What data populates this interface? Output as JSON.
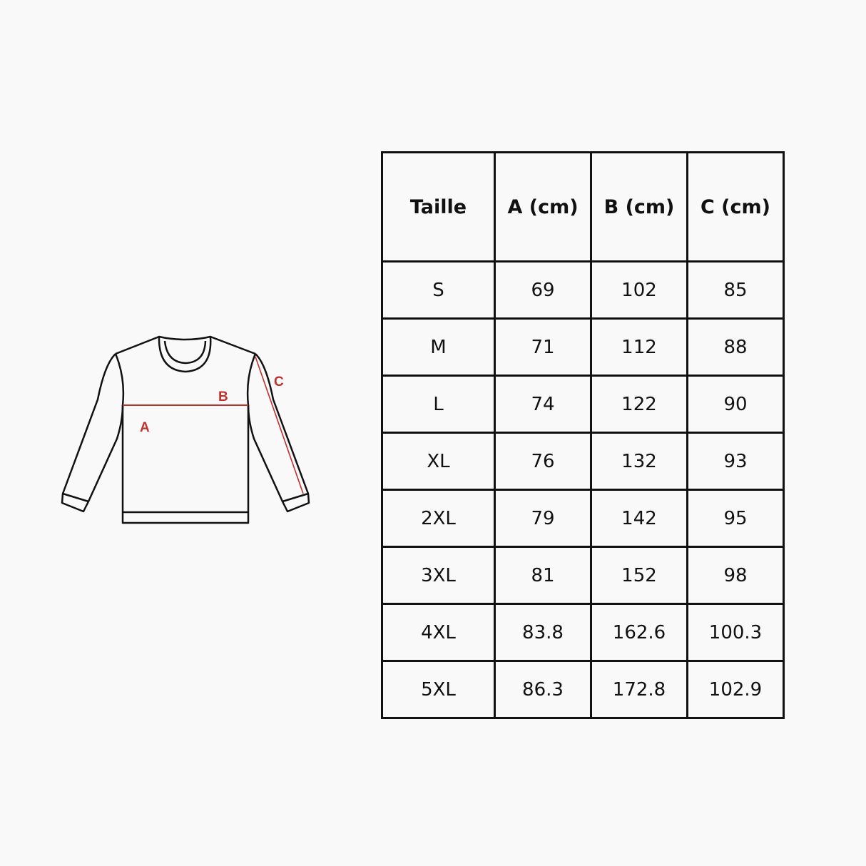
{
  "diagram": {
    "labels": {
      "a": "A",
      "b": "B",
      "c": "C"
    },
    "measure_color": "#c0312b"
  },
  "size_table": {
    "headers": [
      "Taille",
      "A (cm)",
      "B (cm)",
      "C (cm)"
    ],
    "rows": [
      [
        "S",
        "69",
        "102",
        "85"
      ],
      [
        "M",
        "71",
        "112",
        "88"
      ],
      [
        "L",
        "74",
        "122",
        "90"
      ],
      [
        "XL",
        "76",
        "132",
        "93"
      ],
      [
        "2XL",
        "79",
        "142",
        "95"
      ],
      [
        "3XL",
        "81",
        "152",
        "98"
      ],
      [
        "4XL",
        "83.8",
        "162.6",
        "100.3"
      ],
      [
        "5XL",
        "86.3",
        "172.8",
        "102.9"
      ]
    ]
  }
}
